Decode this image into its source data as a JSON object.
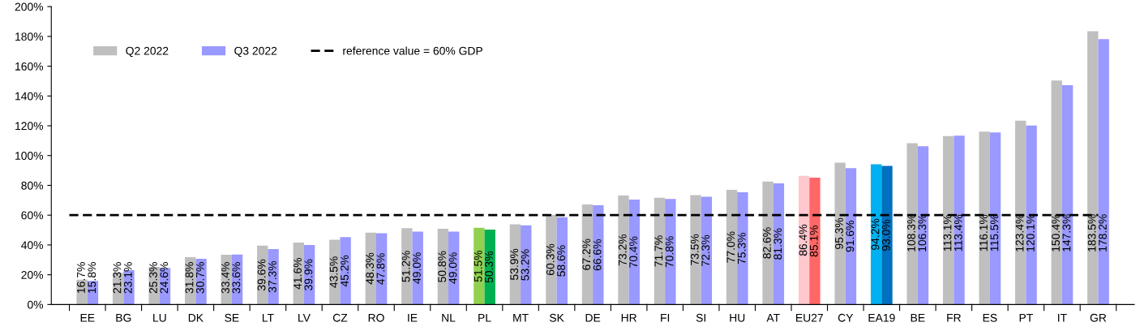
{
  "chart_data": {
    "type": "bar",
    "categories": [
      "EE",
      "BG",
      "LU",
      "DK",
      "SE",
      "LT",
      "LV",
      "CZ",
      "RO",
      "IE",
      "NL",
      "PL",
      "MT",
      "SK",
      "DE",
      "HR",
      "FI",
      "SI",
      "HU",
      "AT",
      "EU27",
      "CY",
      "EA19",
      "BE",
      "FR",
      "ES",
      "PT",
      "IT",
      "GR"
    ],
    "series": [
      {
        "name": "Q2 2022",
        "color": "#bfbfbf",
        "colors": [
          "#bfbfbf",
          "#bfbfbf",
          "#bfbfbf",
          "#bfbfbf",
          "#bfbfbf",
          "#bfbfbf",
          "#bfbfbf",
          "#bfbfbf",
          "#bfbfbf",
          "#bfbfbf",
          "#bfbfbf",
          "#92d050",
          "#bfbfbf",
          "#bfbfbf",
          "#bfbfbf",
          "#bfbfbf",
          "#bfbfbf",
          "#bfbfbf",
          "#bfbfbf",
          "#bfbfbf",
          "#ffc7ce",
          "#bfbfbf",
          "#00b0f0",
          "#bfbfbf",
          "#bfbfbf",
          "#bfbfbf",
          "#bfbfbf",
          "#bfbfbf",
          "#bfbfbf"
        ],
        "values": [
          16.7,
          21.3,
          25.3,
          31.8,
          33.4,
          39.6,
          41.6,
          43.5,
          48.3,
          51.2,
          50.8,
          51.5,
          53.9,
          60.3,
          67.2,
          73.2,
          71.7,
          73.5,
          77.0,
          82.6,
          86.4,
          95.3,
          94.2,
          108.3,
          113.1,
          116.1,
          123.4,
          150.4,
          183.5
        ],
        "value_labels": [
          "16.7%",
          "21.3%",
          "25.3%",
          "31.8%",
          "33.4%",
          "39.6%",
          "41.6%",
          "43.5%",
          "48.3%",
          "51.2%",
          "50.8%",
          "51.5%",
          "53.9%",
          "60.3%",
          "67.2%",
          "73.2%",
          "71.7%",
          "73.5%",
          "77.0%",
          "82.6%",
          "86.4%",
          "95.3%",
          "94.2%",
          "108.3%",
          "113.1%",
          "116.1%",
          "123.4%",
          "150.4%",
          "183.5%"
        ]
      },
      {
        "name": "Q3 2022",
        "color": "#9999ff",
        "colors": [
          "#9999ff",
          "#9999ff",
          "#9999ff",
          "#9999ff",
          "#9999ff",
          "#9999ff",
          "#9999ff",
          "#9999ff",
          "#9999ff",
          "#9999ff",
          "#9999ff",
          "#00b050",
          "#9999ff",
          "#9999ff",
          "#9999ff",
          "#9999ff",
          "#9999ff",
          "#9999ff",
          "#9999ff",
          "#9999ff",
          "#ff6666",
          "#9999ff",
          "#0070c0",
          "#9999ff",
          "#9999ff",
          "#9999ff",
          "#9999ff",
          "#9999ff",
          "#9999ff"
        ],
        "values": [
          15.8,
          23.1,
          24.6,
          30.7,
          33.6,
          37.3,
          39.9,
          45.2,
          47.8,
          49.0,
          49.0,
          50.3,
          53.2,
          58.6,
          66.6,
          70.4,
          70.8,
          72.3,
          75.3,
          81.3,
          85.1,
          91.6,
          93.0,
          106.3,
          113.4,
          115.5,
          120.1,
          147.3,
          178.2
        ],
        "value_labels": [
          "15.8%",
          "23.1%",
          "24.6%",
          "30.7%",
          "33.6%",
          "37.3%",
          "39.9%",
          "45.2%",
          "47.8%",
          "49.0%",
          "49.0%",
          "50.3%",
          "53.2%",
          "58.6%",
          "66.6%",
          "70.4%",
          "70.8%",
          "72.3%",
          "75.3%",
          "81.3%",
          "85.1%",
          "91.6%",
          "93.0%",
          "106.3%",
          "113.4%",
          "115.5%",
          "120.1%",
          "147.3%",
          "178.2%"
        ]
      }
    ],
    "ylim": [
      0,
      200
    ],
    "yticks": [
      {
        "value": 0,
        "label": "0%"
      },
      {
        "value": 20,
        "label": "20%"
      },
      {
        "value": 40,
        "label": "40%"
      },
      {
        "value": 60,
        "label": "60%"
      },
      {
        "value": 80,
        "label": "80%"
      },
      {
        "value": 100,
        "label": "100%"
      },
      {
        "value": 120,
        "label": "120%"
      },
      {
        "value": 140,
        "label": "140%"
      },
      {
        "value": 160,
        "label": "160%"
      },
      {
        "value": 180,
        "label": "180%"
      },
      {
        "value": 200,
        "label": "200%"
      }
    ],
    "ref_lines": [
      {
        "axis": "y",
        "value": 60,
        "label": "reference value = 60% GDP",
        "color": "#000000",
        "line_style": "dashed"
      }
    ],
    "legend": "top left",
    "grid": false
  }
}
